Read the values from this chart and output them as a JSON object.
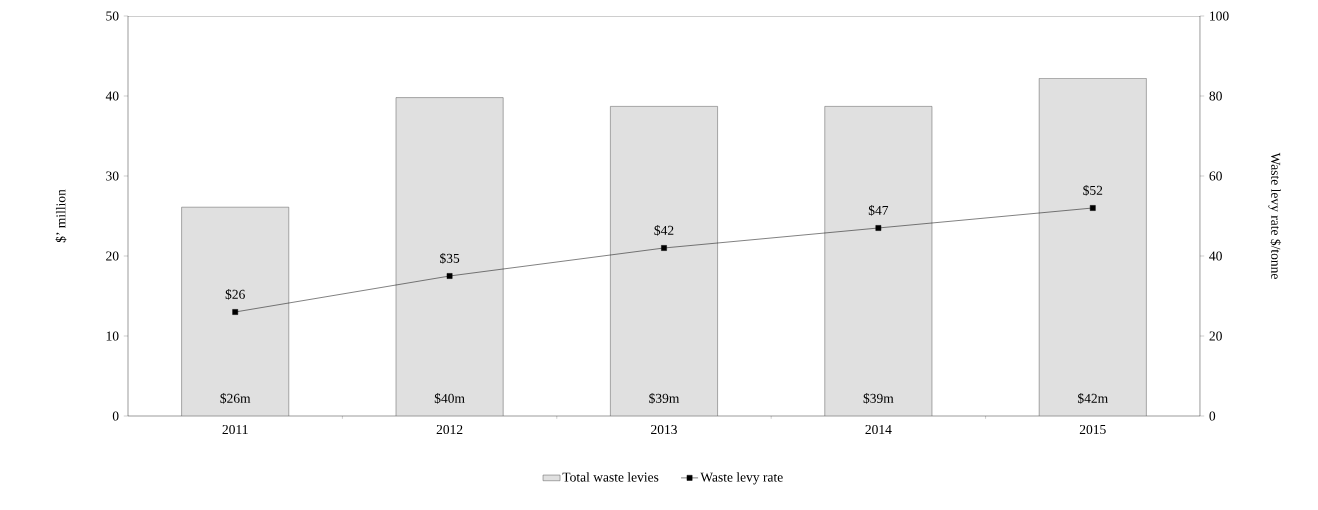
{
  "chart_data": {
    "type": "bar",
    "categories": [
      "2011",
      "2012",
      "2013",
      "2014",
      "2015"
    ],
    "ylabel": "$’ million",
    "y2label": "Waste levy rate $/tonne",
    "ylim": [
      0,
      50
    ],
    "yticks": [
      0,
      10,
      20,
      30,
      40,
      50
    ],
    "y2lim": [
      0,
      100
    ],
    "y2ticks": [
      0,
      20,
      40,
      60,
      80,
      100
    ],
    "legend": "bottom",
    "marker": "square",
    "series": [
      {
        "name": "Total waste levies",
        "color": "#e0e0e0",
        "values": [
          26.1,
          39.8,
          38.7,
          38.7,
          42.2
        ],
        "value_labels": [
          "$26m",
          "$40m",
          "$39m",
          "$39m",
          "$42m"
        ]
      },
      {
        "name": "Waste levy rate",
        "type": "line",
        "axis": "y2",
        "color": "#000000",
        "values": [
          26,
          35,
          42,
          47,
          52
        ],
        "value_labels": [
          "$26",
          "$35",
          "$42",
          "$47",
          "$52"
        ]
      }
    ]
  }
}
